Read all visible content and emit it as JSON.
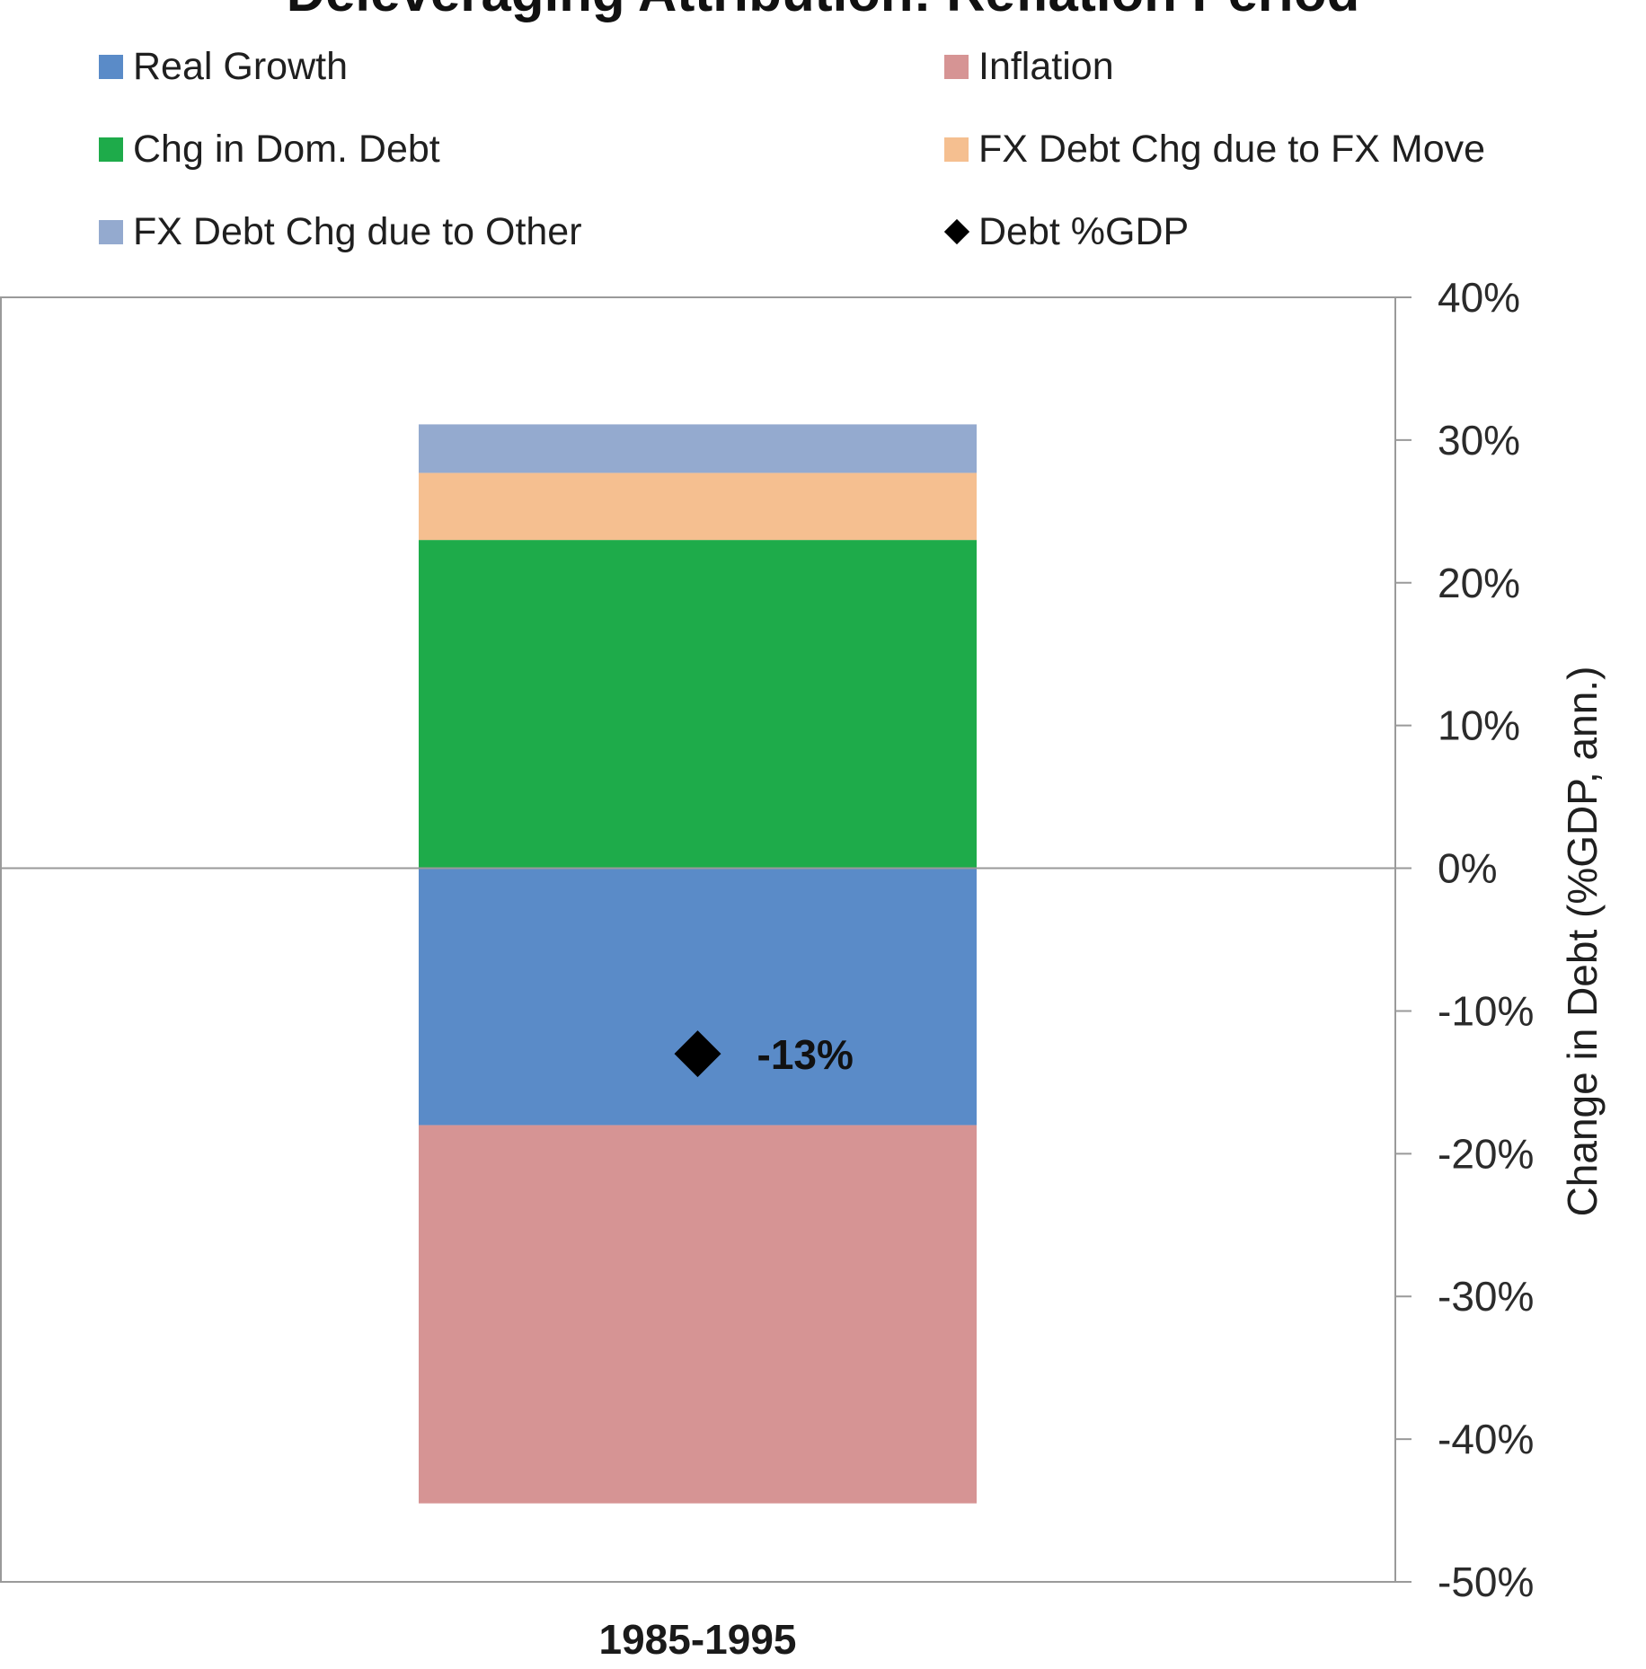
{
  "chart_data": {
    "type": "bar",
    "stacked": true,
    "title": "Deleveraging Attribution: Reflation Period",
    "categories": [
      "1985-1995"
    ],
    "series": [
      {
        "name": "Real Growth",
        "values": [
          -18
        ],
        "color": "#5A8BC8"
      },
      {
        "name": "Inflation",
        "values": [
          -26.5
        ],
        "color": "#D69494"
      },
      {
        "name": "Chg in Dom. Debt",
        "values": [
          23
        ],
        "color": "#1EAB4A"
      },
      {
        "name": "FX Debt Chg due to FX Move",
        "values": [
          4.7
        ],
        "color": "#F5BF90"
      },
      {
        "name": "FX Debt Chg due to Other",
        "values": [
          3.4
        ],
        "color": "#94AACF"
      }
    ],
    "markers": [
      {
        "name": "Debt %GDP",
        "values": [
          -13
        ],
        "labels": [
          "-13%"
        ],
        "color": "#000000",
        "shape": "diamond"
      }
    ],
    "legend_order": [
      "Real Growth",
      "Inflation",
      "Chg in Dom. Debt",
      "FX Debt Chg due to FX Move",
      "FX Debt Chg due to Other",
      "Debt %GDP"
    ],
    "ylabel": "Change in Debt (%GDP, ann.)",
    "xlabel": "",
    "ylim": [
      -50,
      40
    ],
    "yticks": [
      40,
      30,
      20,
      10,
      0,
      -10,
      -20,
      -30,
      -40,
      -50
    ],
    "ytick_labels": [
      "40%",
      "30%",
      "20%",
      "10%",
      "0%",
      "-10%",
      "-20%",
      "-30%",
      "-40%",
      "-50%"
    ],
    "y_axis_position": "right",
    "grid": false,
    "legend_position": "top"
  }
}
